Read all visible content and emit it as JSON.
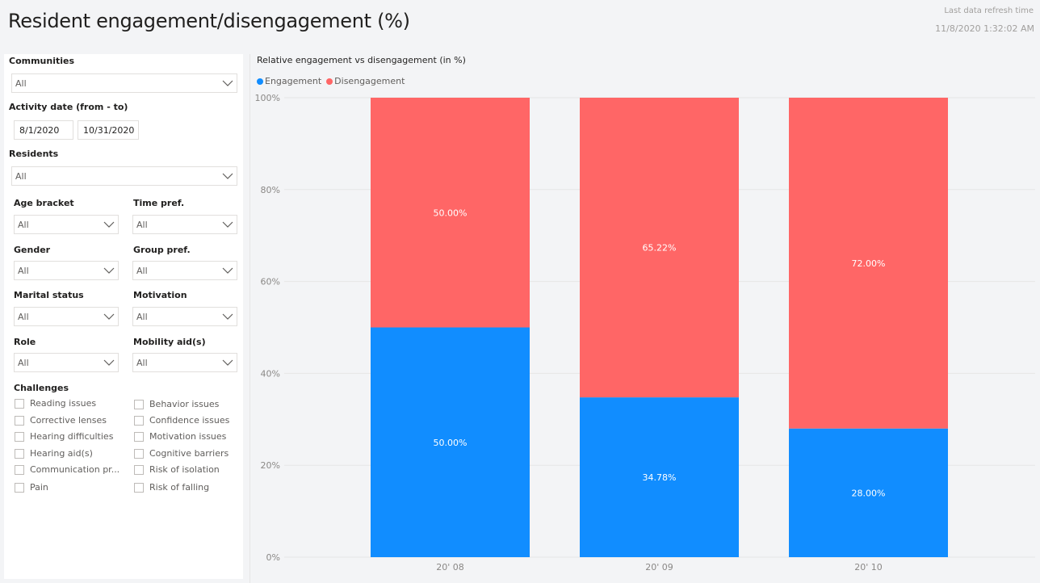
{
  "header": {
    "title": "Resident engagement/disengagement (%)",
    "refresh_label": "Last data refresh time",
    "refresh_time": "11/8/2020 1:32:02 AM"
  },
  "filters": {
    "communities": {
      "label": "Communities",
      "value": "All"
    },
    "activity_date": {
      "label": "Activity date (from - to)",
      "from": "8/1/2020",
      "to": "10/31/2020"
    },
    "residents": {
      "label": "Residents",
      "value": "All"
    },
    "age_bracket": {
      "label": "Age bracket",
      "value": "All"
    },
    "time_pref": {
      "label": "Time pref.",
      "value": "All"
    },
    "gender": {
      "label": "Gender",
      "value": "All"
    },
    "group_pref": {
      "label": "Group pref.",
      "value": "All"
    },
    "marital_status": {
      "label": "Marital status",
      "value": "All"
    },
    "motivation": {
      "label": "Motivation",
      "value": "All"
    },
    "role": {
      "label": "Role",
      "value": "All"
    },
    "mobility_aids": {
      "label": "Mobility aid(s)",
      "value": "All"
    },
    "challenges": {
      "label": "Challenges",
      "left": [
        "Reading issues",
        "Corrective lenses",
        "Hearing difficulties",
        "Hearing aid(s)",
        "Communication pr...",
        "Pain"
      ],
      "right": [
        "Behavior issues",
        "Confidence issues",
        "Motivation issues",
        "Cognitive barriers",
        "Risk of isolation",
        "Risk of falling"
      ]
    }
  },
  "colors": {
    "engagement": "#118dff",
    "disengagement": "#ff6666"
  },
  "chart_data": {
    "type": "bar",
    "stacked": true,
    "title": "Relative engagement vs disengagement (in %)",
    "categories": [
      "20' 08",
      "20' 09",
      "20' 10"
    ],
    "series": [
      {
        "name": "Engagement",
        "values": [
          50.0,
          34.78,
          28.0
        ],
        "labels": [
          "50.00%",
          "34.78%",
          "28.00%"
        ]
      },
      {
        "name": "Disengagement",
        "values": [
          50.0,
          65.22,
          72.0
        ],
        "labels": [
          "50.00%",
          "65.22%",
          "72.00%"
        ]
      }
    ],
    "y_ticks": [
      "0%",
      "20%",
      "40%",
      "60%",
      "80%",
      "100%"
    ],
    "ylim": [
      0,
      100
    ],
    "legend_position": "top-left"
  }
}
